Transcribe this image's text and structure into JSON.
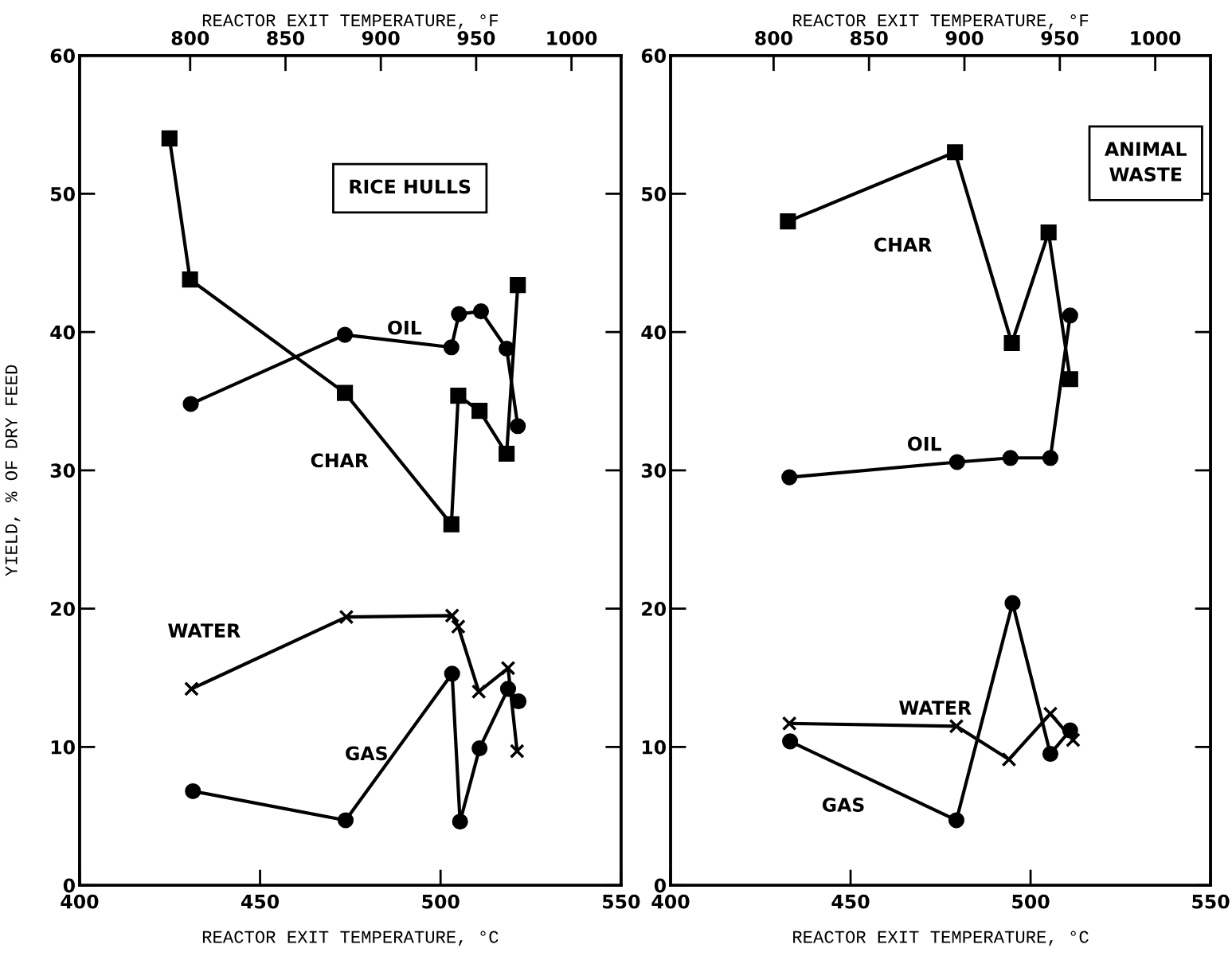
{
  "chart_data": [
    {
      "type": "line",
      "title": "RICE HULLS",
      "xlabel": "REACTOR EXIT TEMPERATURE, °C",
      "x2label": "REACTOR EXIT TEMPERATURE, °F",
      "ylabel": "YIELD, % OF DRY FEED",
      "xlim": [
        400,
        550
      ],
      "xticks": [
        400,
        450,
        500,
        550
      ],
      "x2lim": [
        742,
        1026
      ],
      "x2ticks": [
        800,
        850,
        900,
        950,
        {
          "value": 1000,
          "label": "1000"
        }
      ],
      "ylim": [
        0,
        60
      ],
      "yticks": [
        0,
        10,
        20,
        30,
        40,
        50,
        60
      ],
      "grid": false,
      "legend": false,
      "series": [
        {
          "name": "CHAR",
          "color": "#000000",
          "marker": "square",
          "x": [
            424.9,
            430.6,
            473.5,
            503.0,
            504.9,
            510.8,
            518.3,
            521.4
          ],
          "values": [
            54.0,
            43.8,
            35.6,
            26.1,
            35.4,
            34.3,
            31.2,
            43.4
          ]
        },
        {
          "name": "OIL",
          "color": "#000000",
          "marker": "circle",
          "x": [
            430.8,
            473.5,
            503.0,
            505.1,
            511.2,
            518.3,
            521.4
          ],
          "values": [
            34.8,
            39.8,
            38.9,
            41.3,
            41.5,
            38.8,
            33.2
          ]
        },
        {
          "name": "WATER",
          "color": "#000000",
          "marker": "cross",
          "x": [
            431.0,
            473.9,
            503.2,
            504.9,
            510.6,
            518.7,
            521.2
          ],
          "values": [
            14.2,
            19.4,
            19.5,
            18.7,
            14.0,
            15.7,
            9.7
          ]
        },
        {
          "name": "GAS",
          "color": "#000000",
          "marker": "circle",
          "x": [
            431.4,
            473.7,
            503.2,
            505.4,
            510.8,
            518.7,
            521.6
          ],
          "values": [
            6.8,
            4.7,
            15.3,
            4.6,
            9.9,
            14.2,
            13.3
          ]
        }
      ]
    },
    {
      "type": "line",
      "title": "ANIMAL\nWASTE",
      "xlabel": "REACTOR EXIT TEMPERATURE, °C",
      "x2label": "REACTOR EXIT TEMPERATURE, °F",
      "xlim": [
        400,
        550
      ],
      "xticks": [
        400,
        450,
        500,
        550
      ],
      "x2lim": [
        746,
        1029
      ],
      "x2ticks": [
        800,
        850,
        900,
        950,
        {
          "value": 1000,
          "label": "1000"
        }
      ],
      "ylim": [
        0,
        60
      ],
      "yticks": [
        0,
        10,
        20,
        30,
        40,
        50,
        60
      ],
      "grid": false,
      "legend": false,
      "series": [
        {
          "name": "CHAR",
          "color": "#000000",
          "marker": "square",
          "x": [
            432.6,
            479.0,
            494.8,
            505.0,
            511.0
          ],
          "values": [
            48.0,
            53.0,
            39.2,
            47.2,
            36.6
          ]
        },
        {
          "name": "OIL",
          "color": "#000000",
          "marker": "circle",
          "x": [
            433.0,
            479.6,
            494.4,
            505.5,
            511.0
          ],
          "values": [
            29.5,
            30.6,
            30.9,
            30.9,
            41.2
          ]
        },
        {
          "name": "WATER",
          "color": "#000000",
          "marker": "cross",
          "x": [
            433.0,
            479.4,
            494.0,
            505.5,
            511.8
          ],
          "values": [
            11.7,
            11.5,
            9.1,
            12.4,
            10.5
          ]
        },
        {
          "name": "GAS",
          "color": "#000000",
          "marker": "circle",
          "x": [
            433.2,
            479.4,
            495.0,
            505.5,
            511.0
          ],
          "values": [
            10.4,
            4.7,
            20.4,
            9.5,
            11.2
          ]
        }
      ]
    }
  ]
}
